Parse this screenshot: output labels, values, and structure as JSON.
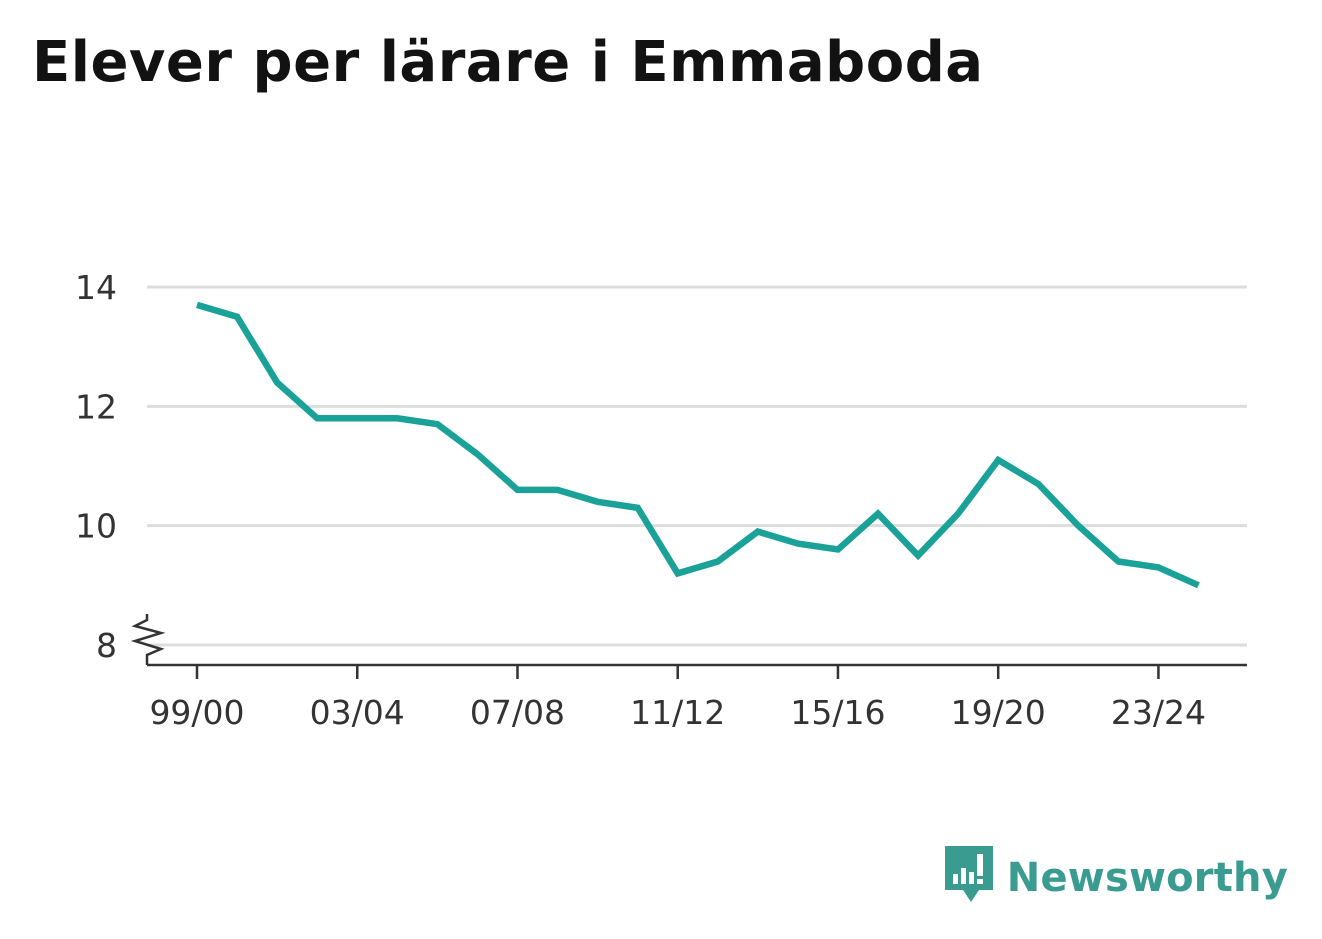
{
  "title": "Elever per lärare i Emmaboda",
  "brand": {
    "name": "Newsworthy",
    "logo_icon": "newsworthy-logo-icon",
    "color": "#3a9c91"
  },
  "colors": {
    "line": "#1aa198",
    "grid": "#dddddd",
    "axis": "#333333"
  },
  "chart_data": {
    "type": "line",
    "title": "Elever per lärare i Emmaboda",
    "xlabel": "",
    "ylabel": "",
    "x": [
      "99/00",
      "00/01",
      "01/02",
      "02/03",
      "03/04",
      "04/05",
      "05/06",
      "06/07",
      "07/08",
      "08/09",
      "09/10",
      "10/11",
      "11/12",
      "12/13",
      "13/14",
      "14/15",
      "15/16",
      "16/17",
      "17/18",
      "18/19",
      "19/20",
      "20/21",
      "21/22",
      "22/23",
      "23/24",
      "24/25"
    ],
    "series": [
      {
        "values": [
          13.7,
          13.5,
          12.4,
          11.8,
          11.8,
          11.8,
          11.7,
          11.2,
          10.6,
          10.6,
          10.4,
          10.3,
          9.2,
          9.4,
          9.9,
          9.7,
          9.6,
          10.2,
          9.5,
          10.2,
          11.1,
          10.7,
          10.0,
          9.4,
          9.3,
          9.0
        ]
      }
    ],
    "x_tick_labels": [
      "99/00",
      "03/04",
      "07/08",
      "11/12",
      "15/16",
      "19/20",
      "23/24"
    ],
    "y_ticks": [
      8,
      10,
      12,
      14
    ],
    "ylim": [
      8,
      14
    ],
    "y_axis_break": true,
    "grid": true,
    "legend": "none"
  }
}
